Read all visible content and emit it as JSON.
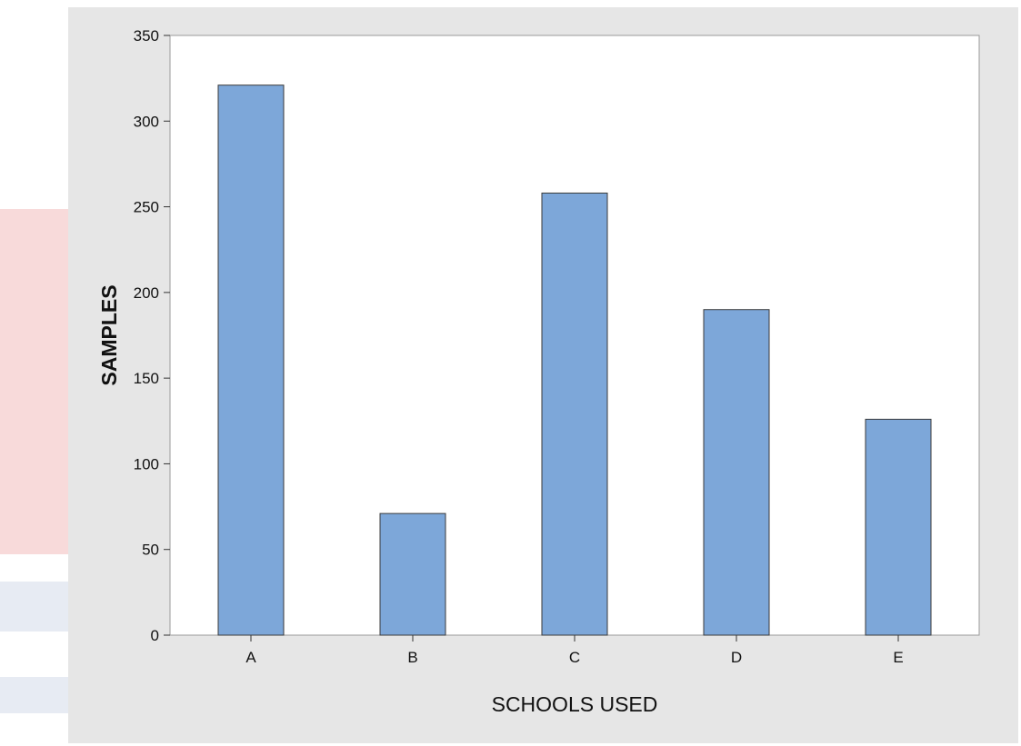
{
  "chart_data": {
    "type": "bar",
    "categories": [
      "A",
      "B",
      "C",
      "D",
      "E"
    ],
    "values": [
      321,
      71,
      258,
      190,
      126
    ],
    "title": "",
    "xlabel": "SCHOOLS USED",
    "ylabel": "SAMPLES",
    "ylim": [
      0,
      350
    ],
    "yticks": [
      0,
      50,
      100,
      150,
      200,
      250,
      300,
      350
    ],
    "grid": false,
    "bar_color": "#7da7d9",
    "bar_edge_color": "#3a3a3a",
    "plot_background": "#ffffff",
    "figure_background": "#e6e6e6"
  }
}
